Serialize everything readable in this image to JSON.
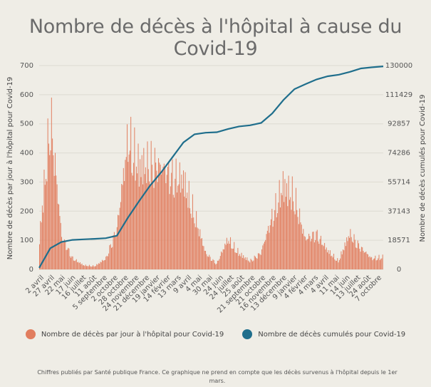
{
  "title": "Nombre de décès à l'hôpital à cause du Covid-19",
  "footnote": "Chiffres publiés par Santé publique France. Ce graphique ne prend en compte que les décès survenus à l'hôpital depuis le 1er mars.",
  "colors": {
    "daily": "#e17d5e",
    "cumulative": "#1f6e8c",
    "grid": "#dedbd2",
    "background": "#efede6"
  },
  "chart_data": {
    "type": "bar",
    "title": "Nombre de décès à l'hôpital à cause du Covid-19",
    "xlabel": "",
    "ylabel": "Nombre de décès par jour à l'hôpital pour Covid-19",
    "y2label": "Nombre de décès cumulés pour Covid-19",
    "ylim": [
      0,
      700
    ],
    "y2lim": [
      0,
      130000
    ],
    "yticks": [
      "0",
      "100",
      "200",
      "300",
      "400",
      "500",
      "600",
      "700"
    ],
    "y2ticks": [
      "0",
      "18571",
      "37143",
      "55714",
      "74286",
      "92857",
      "111429",
      "130000"
    ],
    "x_tick_labels": [
      "2 avril",
      "27 avril",
      "22 mai",
      "17 juin",
      "16 juillet",
      "11 août",
      "5 septembre",
      "2 octobre",
      "28 octobre",
      "24 novembre",
      "21 décembre",
      "19 janvier",
      "14 février",
      "13 mars",
      "9 avril",
      "4 mai",
      "30 mai",
      "24 juin",
      "24 juillet",
      "25 août",
      "21 septembre",
      "21 octobre",
      "16 novembre",
      "13 décembre",
      "9 janvier",
      "4 février",
      "4 mars",
      "4 avril",
      "11 mai",
      "14 juin",
      "13 juillet",
      "24 août",
      "7 octobre"
    ],
    "series": [
      {
        "name": "Nombre de décès par jour à l'hôpital pour Covid-19",
        "type": "bar",
        "axis": "left",
        "x": [
          "2020-03",
          "2020-04",
          "2020-05",
          "2020-06",
          "2020-07",
          "2020-08",
          "2020-09",
          "2020-10",
          "2020-11",
          "2020-12",
          "2021-01",
          "2021-02",
          "2021-03",
          "2021-04",
          "2021-05",
          "2021-06",
          "2021-07",
          "2021-08",
          "2021-09",
          "2021-10",
          "2021-11",
          "2021-12",
          "2022-01",
          "2022-02",
          "2022-03",
          "2022-04",
          "2022-05",
          "2022-06",
          "2022-07",
          "2022-08",
          "2022-09",
          "2022-10"
        ],
        "values": [
          120,
          560,
          120,
          40,
          15,
          12,
          40,
          150,
          480,
          380,
          390,
          370,
          340,
          330,
          200,
          60,
          20,
          110,
          60,
          30,
          60,
          190,
          310,
          270,
          110,
          130,
          70,
          30,
          130,
          80,
          40,
          45
        ]
      },
      {
        "name": "Nombre de décès cumulés pour Covid-19",
        "type": "line",
        "axis": "right",
        "x": [
          "2020-03",
          "2020-04",
          "2020-05",
          "2020-06",
          "2020-07",
          "2020-08",
          "2020-09",
          "2020-10",
          "2020-11",
          "2020-12",
          "2021-01",
          "2021-02",
          "2021-03",
          "2021-04",
          "2021-05",
          "2021-06",
          "2021-07",
          "2021-08",
          "2021-09",
          "2021-10",
          "2021-11",
          "2021-12",
          "2022-01",
          "2022-02",
          "2022-03",
          "2022-04",
          "2022-05",
          "2022-06",
          "2022-07",
          "2022-08",
          "2022-09",
          "2022-10"
        ],
        "values": [
          1000,
          13500,
          17500,
          18800,
          19200,
          19500,
          19900,
          21500,
          33000,
          43500,
          53500,
          62000,
          71500,
          81000,
          86200,
          87200,
          87500,
          89500,
          91200,
          91900,
          93400,
          99500,
          108000,
          115000,
          118200,
          121200,
          123200,
          124200,
          126000,
          128200,
          128900,
          129500
        ]
      }
    ],
    "grid": true,
    "legend_position": "bottom"
  }
}
